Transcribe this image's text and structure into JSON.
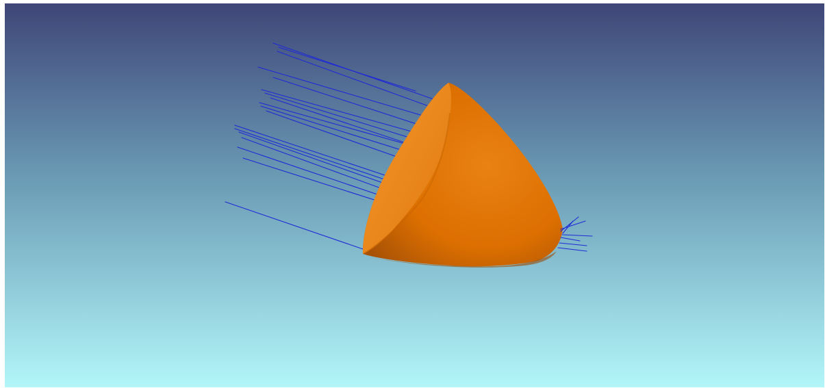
{
  "scene": {
    "background_top": "#3f4678",
    "background_bottom": "#b2f6f9",
    "shell_color": "#e17400",
    "shell_inner_color": "#f08a1c",
    "shell_shadow_color": "#a24d05",
    "ray_color": "#1f2ad6"
  },
  "icons": {
    "shell": "paraboloid-reflector-shell",
    "rays": "incident-light-rays"
  }
}
